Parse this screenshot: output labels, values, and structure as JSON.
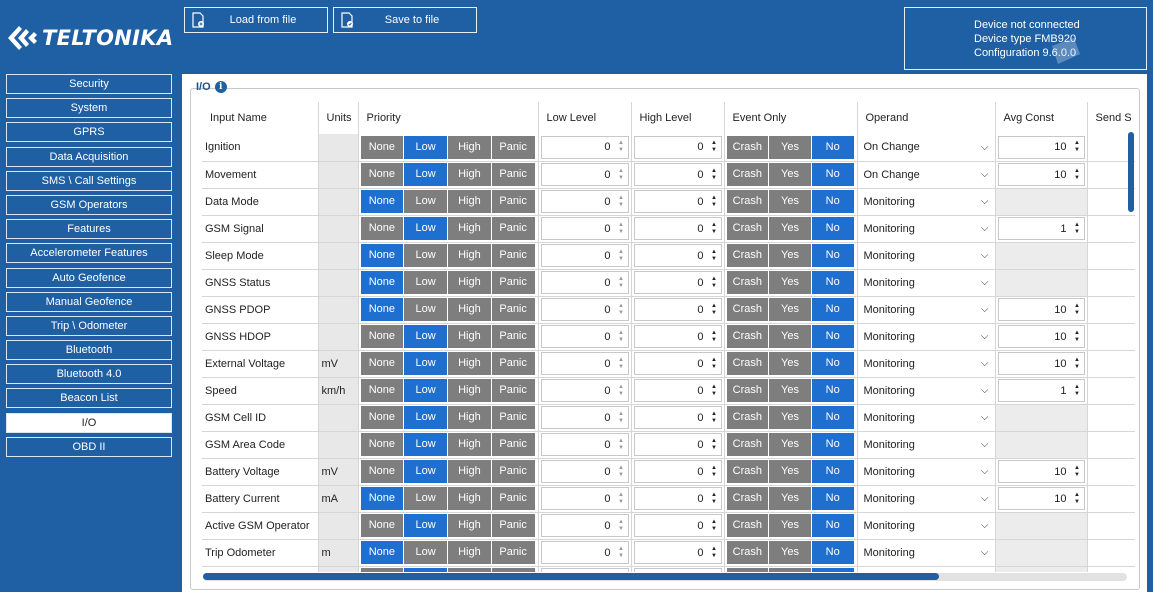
{
  "brand": {
    "logo_text": "TELTONIKA"
  },
  "toolbar": {
    "load_label": "Load from file",
    "save_label": "Save to file"
  },
  "status": {
    "line1": "Device not connected",
    "line2": "Device type FMB920",
    "line3": "Configuration 9.6.0.0"
  },
  "sidebar": {
    "items": [
      {
        "label": "Security"
      },
      {
        "label": "System"
      },
      {
        "label": "GPRS"
      },
      {
        "label": "Data Acquisition"
      },
      {
        "label": "SMS \\ Call Settings"
      },
      {
        "label": "GSM Operators"
      },
      {
        "label": "Features"
      },
      {
        "label": "Accelerometer Features"
      },
      {
        "label": "Auto Geofence"
      },
      {
        "label": "Manual Geofence"
      },
      {
        "label": "Trip \\ Odometer"
      },
      {
        "label": "Bluetooth"
      },
      {
        "label": "Bluetooth 4.0"
      },
      {
        "label": "Beacon List"
      },
      {
        "label": "I/O"
      },
      {
        "label": "OBD II"
      }
    ],
    "active": "I/O"
  },
  "section": {
    "title": "I/O",
    "info_icon": "i"
  },
  "table": {
    "headers": {
      "input_name": "Input Name",
      "units": "Units",
      "priority": "Priority",
      "low_level": "Low Level",
      "high_level": "High Level",
      "event_only": "Event Only",
      "operand": "Operand",
      "avg_const": "Avg Const",
      "send_sms": "Send S"
    },
    "priority_options": [
      "None",
      "Low",
      "High",
      "Panic"
    ],
    "event_options": [
      "Crash",
      "Yes",
      "No"
    ],
    "rows": [
      {
        "name": "Ignition",
        "units": "",
        "priority": "Low",
        "low": "0",
        "high": "0",
        "event": "No",
        "operand": "On Change",
        "avg": "10"
      },
      {
        "name": "Movement",
        "units": "",
        "priority": "Low",
        "low": "0",
        "high": "0",
        "event": "No",
        "operand": "On Change",
        "avg": "10"
      },
      {
        "name": "Data Mode",
        "units": "",
        "priority": "None",
        "low": "0",
        "high": "0",
        "event": "No",
        "operand": "Monitoring",
        "avg": ""
      },
      {
        "name": "GSM Signal",
        "units": "",
        "priority": "Low",
        "low": "0",
        "high": "0",
        "event": "No",
        "operand": "Monitoring",
        "avg": "1"
      },
      {
        "name": "Sleep Mode",
        "units": "",
        "priority": "None",
        "low": "0",
        "high": "0",
        "event": "No",
        "operand": "Monitoring",
        "avg": ""
      },
      {
        "name": "GNSS Status",
        "units": "",
        "priority": "None",
        "low": "0",
        "high": "0",
        "event": "No",
        "operand": "Monitoring",
        "avg": ""
      },
      {
        "name": "GNSS PDOP",
        "units": "",
        "priority": "None",
        "low": "0",
        "high": "0",
        "event": "No",
        "operand": "Monitoring",
        "avg": "10"
      },
      {
        "name": "GNSS HDOP",
        "units": "",
        "priority": "Low",
        "low": "0",
        "high": "0",
        "event": "No",
        "operand": "Monitoring",
        "avg": "10"
      },
      {
        "name": "External Voltage",
        "units": "mV",
        "priority": "Low",
        "low": "0",
        "high": "0",
        "event": "No",
        "operand": "Monitoring",
        "avg": "10"
      },
      {
        "name": "Speed",
        "units": "km/h",
        "priority": "Low",
        "low": "0",
        "high": "0",
        "event": "No",
        "operand": "Monitoring",
        "avg": "1"
      },
      {
        "name": "GSM Cell ID",
        "units": "",
        "priority": "Low",
        "low": "0",
        "high": "0",
        "event": "No",
        "operand": "Monitoring",
        "avg": ""
      },
      {
        "name": "GSM Area Code",
        "units": "",
        "priority": "Low",
        "low": "0",
        "high": "0",
        "event": "No",
        "operand": "Monitoring",
        "avg": ""
      },
      {
        "name": "Battery Voltage",
        "units": "mV",
        "priority": "Low",
        "low": "0",
        "high": "0",
        "event": "No",
        "operand": "Monitoring",
        "avg": "10"
      },
      {
        "name": "Battery Current",
        "units": "mA",
        "priority": "None",
        "low": "0",
        "high": "0",
        "event": "No",
        "operand": "Monitoring",
        "avg": "10"
      },
      {
        "name": "Active GSM Operator",
        "units": "",
        "priority": "Low",
        "low": "0",
        "high": "0",
        "event": "No",
        "operand": "Monitoring",
        "avg": ""
      },
      {
        "name": "Trip Odometer",
        "units": "m",
        "priority": "None",
        "low": "0",
        "high": "0",
        "event": "No",
        "operand": "Monitoring",
        "avg": ""
      },
      {
        "name": "",
        "units": "",
        "priority": "Low",
        "low": "",
        "high": "",
        "event": "No",
        "operand": "",
        "avg": ""
      }
    ]
  },
  "colors": {
    "accent": "#1f5fa3",
    "selected": "#1f6fd1",
    "option": "#7e7e7e"
  }
}
